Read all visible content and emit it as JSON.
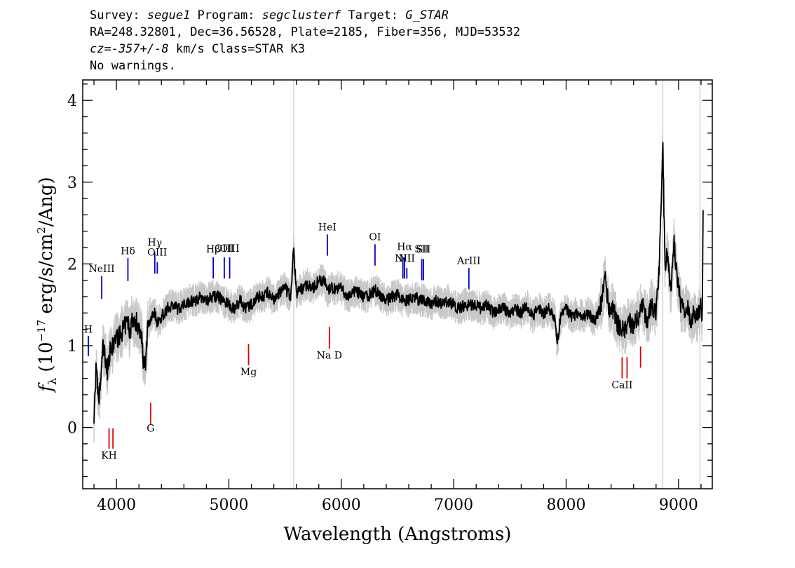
{
  "header": {
    "survey_prefix": "Survey: ",
    "survey": "segue1",
    "program_prefix": " Program: ",
    "program": "segclusterf",
    "target_prefix": " Target: ",
    "target": "G_STAR",
    "line2": "RA=248.32801, Dec=36.56528, Plate=2185, Fiber=356, MJD=53532",
    "cz_value": "cz=-357+/-8",
    "line3_rest": " km/s Class=STAR K3",
    "line4": "No warnings."
  },
  "colors": {
    "flux": "#000000",
    "error": "#c8c8c8",
    "emission": "#0000cc",
    "absorption": "#e00000",
    "axis": "#000000"
  },
  "chart_data": {
    "type": "line",
    "title": "",
    "xlabel": "Wavelength (Angstroms)",
    "ylabel_main": "f",
    "ylabel_sub": "λ",
    "ylabel_rest": " (10",
    "ylabel_exp": "−17",
    "ylabel_tail": " erg/s/cm",
    "ylabel_exp2": "2",
    "ylabel_end": "/Ang)",
    "xlim": [
      3700,
      9300
    ],
    "ylim": [
      -0.75,
      4.25
    ],
    "xticks": [
      4000,
      5000,
      6000,
      7000,
      8000,
      9000
    ],
    "yticks": [
      0,
      1,
      2,
      3,
      4
    ],
    "grid": false,
    "legend": "none",
    "sky_lines": [
      5577,
      8860,
      9190
    ],
    "emission_lines": [
      {
        "label": "H",
        "wavelength": 3750,
        "y0": 0.87,
        "y1": 1.12,
        "ly": 1.16
      },
      {
        "label": "NeIII",
        "wavelength": 3869,
        "y0": 1.57,
        "y1": 1.85,
        "ly": 1.9
      },
      {
        "label": "Hδ",
        "wavelength": 4102,
        "y0": 1.79,
        "y1": 2.07,
        "ly": 2.12
      },
      {
        "label": "Hγ",
        "wavelength": 4341,
        "y0": 1.88,
        "y1": 2.14,
        "ly": 2.22
      },
      {
        "label": "OIII",
        "wavelength": 4363,
        "y0": 1.88,
        "y1": 2.02,
        "ly": 2.1
      },
      {
        "label": "Hβ",
        "wavelength": 4861,
        "y0": 1.82,
        "y1": 2.08,
        "ly": 2.14
      },
      {
        "label": "OIII",
        "wavelength": 4959,
        "y0": 1.82,
        "y1": 2.08,
        "ly": 2.15
      },
      {
        "label": "OIII",
        "wavelength": 5007,
        "y0": 1.82,
        "y1": 2.08,
        "ly": 2.15
      },
      {
        "label": "HeI",
        "wavelength": 5876,
        "y0": 2.1,
        "y1": 2.36,
        "ly": 2.41
      },
      {
        "label": "OI",
        "wavelength": 6300,
        "y0": 1.98,
        "y1": 2.24,
        "ly": 2.29
      },
      {
        "label": "NII",
        "wavelength": 6548,
        "y0": 1.82,
        "y1": 2.07,
        "ly": 2.03
      },
      {
        "label": "Hα",
        "wavelength": 6563,
        "y0": 1.82,
        "y1": 2.08,
        "ly": 2.17
      },
      {
        "label": "NII",
        "wavelength": 6583,
        "y0": 1.82,
        "y1": 1.95,
        "ly": 2.03
      },
      {
        "label": "SII",
        "wavelength": 6716,
        "y0": 1.8,
        "y1": 2.06,
        "ly": 2.14
      },
      {
        "label": "SII",
        "wavelength": 6731,
        "y0": 1.8,
        "y1": 2.06,
        "ly": 2.14
      },
      {
        "label": "ArIII",
        "wavelength": 7135,
        "y0": 1.69,
        "y1": 1.95,
        "ly": 2.0
      }
    ],
    "absorption_lines": [
      {
        "label": "KH",
        "wavelength": 3934,
        "y0": -0.26,
        "y1": -0.01,
        "ly": -0.38
      },
      {
        "label": "",
        "wavelength": 3969,
        "y0": -0.26,
        "y1": -0.01,
        "ly": -0.38
      },
      {
        "label": "G",
        "wavelength": 4304,
        "y0": 0.03,
        "y1": 0.3,
        "ly": -0.05
      },
      {
        "label": "Mg",
        "wavelength": 5175,
        "y0": 0.76,
        "y1": 1.02,
        "ly": 0.64
      },
      {
        "label": "Na D",
        "wavelength": 5894,
        "y0": 0.96,
        "y1": 1.23,
        "ly": 0.84
      },
      {
        "label": "CaII",
        "wavelength": 8498,
        "y0": 0.6,
        "y1": 0.86,
        "ly": 0.48
      },
      {
        "label": "",
        "wavelength": 8542,
        "y0": 0.6,
        "y1": 0.86,
        "ly": 0.48
      },
      {
        "label": "",
        "wavelength": 8662,
        "y0": 0.73,
        "y1": 0.99,
        "ly": 0.48
      }
    ],
    "series": [
      {
        "x": [
          3800,
          3820,
          3840,
          3860,
          3880,
          3900,
          3920,
          3940,
          3960,
          3980,
          4000,
          4020,
          4040,
          4060,
          4080,
          4100,
          4120,
          4140,
          4160,
          4180,
          4200,
          4220,
          4240,
          4260,
          4280,
          4300,
          4320,
          4340,
          4360,
          4380,
          4400,
          4450,
          4500,
          4550,
          4600,
          4650,
          4700,
          4750,
          4800,
          4850,
          4900,
          4950,
          5000,
          5050,
          5100,
          5150,
          5200,
          5250,
          5300,
          5350,
          5400,
          5450,
          5500,
          5550,
          5577,
          5600,
          5650,
          5700,
          5750,
          5800,
          5850,
          5876,
          5900,
          5950,
          6000,
          6050,
          6100,
          6150,
          6200,
          6250,
          6300,
          6350,
          6400,
          6450,
          6500,
          6550,
          6600,
          6650,
          6700,
          6750,
          6800,
          6850,
          6900,
          6950,
          7000,
          7050,
          7100,
          7150,
          7200,
          7250,
          7300,
          7350,
          7400,
          7450,
          7500,
          7550,
          7600,
          7650,
          7700,
          7750,
          7800,
          7850,
          7900,
          7920,
          7950,
          8000,
          8050,
          8100,
          8150,
          8200,
          8250,
          8300,
          8350,
          8380,
          8420,
          8450,
          8480,
          8520,
          8560,
          8600,
          8640,
          8680,
          8720,
          8760,
          8800,
          8830,
          8860,
          8880,
          8900,
          8930,
          8960,
          8990,
          9020,
          9050,
          9080,
          9110,
          9140,
          9170,
          9200,
          9210,
          9220
        ],
        "y": [
          0.1,
          0.75,
          0.3,
          0.55,
          1.0,
          0.85,
          0.7,
          0.92,
          0.95,
          1.05,
          1.1,
          1.1,
          1.15,
          1.2,
          1.25,
          1.3,
          1.15,
          1.35,
          1.25,
          1.3,
          1.2,
          1.2,
          0.8,
          0.75,
          1.3,
          1.3,
          1.4,
          1.4,
          1.3,
          1.3,
          1.35,
          1.45,
          1.5,
          1.45,
          1.5,
          1.55,
          1.55,
          1.6,
          1.55,
          1.6,
          1.6,
          1.55,
          1.5,
          1.45,
          1.55,
          1.45,
          1.5,
          1.6,
          1.6,
          1.65,
          1.55,
          1.65,
          1.7,
          1.6,
          2.2,
          1.65,
          1.7,
          1.75,
          1.7,
          1.8,
          1.8,
          1.65,
          1.7,
          1.7,
          1.7,
          1.6,
          1.65,
          1.65,
          1.6,
          1.62,
          1.68,
          1.62,
          1.55,
          1.6,
          1.62,
          1.55,
          1.55,
          1.6,
          1.55,
          1.55,
          1.5,
          1.55,
          1.5,
          1.55,
          1.5,
          1.45,
          1.5,
          1.5,
          1.5,
          1.45,
          1.5,
          1.4,
          1.45,
          1.45,
          1.4,
          1.45,
          1.4,
          1.5,
          1.35,
          1.45,
          1.4,
          1.45,
          1.35,
          1.0,
          1.35,
          1.45,
          1.35,
          1.4,
          1.35,
          1.4,
          1.3,
          1.45,
          1.8,
          1.45,
          1.45,
          1.3,
          1.2,
          1.2,
          1.3,
          1.25,
          1.35,
          1.5,
          1.3,
          1.5,
          1.4,
          2.0,
          3.5,
          1.9,
          2.2,
          1.6,
          2.25,
          1.8,
          1.5,
          1.4,
          1.45,
          1.3,
          1.4,
          1.35,
          1.5,
          1.3,
          2.85
        ]
      }
    ]
  }
}
